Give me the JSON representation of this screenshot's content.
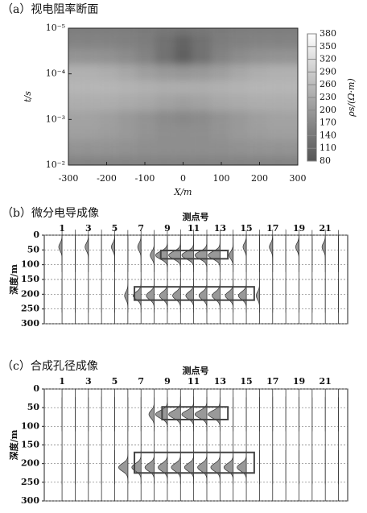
{
  "chart_data": [
    {
      "type": "heatmap",
      "title": "（a）视电阻率断面",
      "xlabel": "X/m",
      "ylabel": "t/s",
      "x": [
        -300,
        -250,
        -200,
        -150,
        -100,
        -50,
        0,
        50,
        100,
        150,
        200,
        250,
        300
      ],
      "y": [
        1e-05,
        2e-05,
        4e-05,
        0.0001,
        0.0002,
        0.0004,
        0.001,
        0.002,
        0.004,
        0.01
      ],
      "z": [
        [
          150,
          150,
          150,
          150,
          145,
          140,
          135,
          140,
          145,
          150,
          150,
          150,
          150
        ],
        [
          160,
          160,
          160,
          155,
          150,
          130,
          105,
          130,
          150,
          155,
          160,
          160,
          160
        ],
        [
          190,
          190,
          185,
          175,
          160,
          130,
          100,
          130,
          160,
          175,
          185,
          190,
          190
        ],
        [
          240,
          240,
          235,
          225,
          210,
          200,
          195,
          200,
          210,
          225,
          235,
          240,
          240
        ],
        [
          250,
          250,
          250,
          245,
          240,
          235,
          235,
          235,
          240,
          245,
          250,
          250,
          250
        ],
        [
          235,
          235,
          235,
          230,
          225,
          215,
          210,
          215,
          225,
          230,
          235,
          235,
          235
        ],
        [
          215,
          215,
          210,
          200,
          190,
          175,
          170,
          175,
          190,
          200,
          210,
          215,
          215
        ],
        [
          210,
          210,
          205,
          200,
          190,
          180,
          178,
          180,
          190,
          200,
          205,
          210,
          210
        ],
        [
          190,
          190,
          190,
          185,
          180,
          178,
          178,
          178,
          180,
          185,
          190,
          190,
          190
        ],
        [
          160,
          160,
          160,
          160,
          160,
          160,
          160,
          160,
          160,
          160,
          160,
          160,
          160
        ]
      ],
      "xlim": [
        -300,
        300
      ],
      "xticks": [
        -300,
        -200,
        -100,
        0,
        100,
        200,
        300
      ],
      "ylim": [
        1e-05,
        0.01
      ],
      "log_y": true,
      "y_reversed": true,
      "yticks": [
        {
          "value": 1e-05,
          "label": "10⁻⁵"
        },
        {
          "value": 0.0001,
          "label": "10⁻⁴"
        },
        {
          "value": 0.001,
          "label": "10⁻³"
        },
        {
          "value": 0.01,
          "label": "10⁻²"
        }
      ],
      "colormap": [
        "#555555",
        "#ffffff"
      ],
      "colorbar": {
        "label": "ρs/(Ω·m)",
        "lim": [
          80,
          380
        ],
        "ticks": [
          80,
          110,
          140,
          170,
          200,
          230,
          260,
          290,
          320,
          350,
          380
        ]
      }
    },
    {
      "type": "wiggle",
      "title": "（b）微分电导成像",
      "xlabel": "测点号",
      "ylabel": "深度/m",
      "stations": [
        1,
        2,
        3,
        4,
        5,
        6,
        7,
        8,
        9,
        10,
        11,
        12,
        13,
        14,
        15,
        16,
        17,
        18,
        19,
        20,
        21,
        22
      ],
      "xlim": [
        -0.35,
        22.7
      ],
      "xticks": [
        1,
        3,
        5,
        7,
        9,
        11,
        13,
        15,
        17,
        19,
        21
      ],
      "ylim": [
        0,
        300
      ],
      "y_reversed": true,
      "yticks": [
        0,
        50,
        100,
        150,
        200,
        250,
        300
      ],
      "grid": true,
      "peaks": [
        {
          "depth": 40,
          "values": [
            0.25,
            0,
            0.25,
            0,
            0.25,
            0,
            0.25,
            0,
            0,
            0,
            0,
            0,
            0,
            0,
            0.25,
            0,
            0.25,
            0,
            0.25,
            0,
            0.25,
            0
          ]
        },
        {
          "depth": 68,
          "values": [
            0,
            0,
            0,
            0,
            0,
            0,
            0,
            0.3,
            0.9,
            0.9,
            0.9,
            0.9,
            0.9,
            0.3,
            0,
            0,
            0,
            0,
            0,
            0,
            0,
            0
          ]
        },
        {
          "depth": 205,
          "values": [
            0,
            0,
            0,
            0,
            0,
            0.25,
            0.6,
            0.6,
            0.6,
            0.6,
            0.6,
            0.6,
            0.6,
            0.6,
            0.6,
            0.25,
            0,
            0,
            0,
            0,
            0,
            0
          ]
        }
      ],
      "boxes": [
        {
          "x": [
            8.5,
            13.6
          ],
          "y": [
            52,
            80
          ]
        },
        {
          "x": [
            6.5,
            15.6
          ],
          "y": [
            175,
            220
          ]
        }
      ]
    },
    {
      "type": "wiggle",
      "title": "（c）合成孔径成像",
      "xlabel": "测点号",
      "ylabel": "深度/m",
      "stations": [
        1,
        2,
        3,
        4,
        5,
        6,
        7,
        8,
        9,
        10,
        11,
        12,
        13,
        14,
        15,
        16,
        17,
        18,
        19,
        20,
        21,
        22
      ],
      "xlim": [
        -0.35,
        22.7
      ],
      "xticks": [
        1,
        3,
        5,
        7,
        9,
        11,
        13,
        15,
        17,
        19,
        21
      ],
      "ylim": [
        0,
        300
      ],
      "y_reversed": true,
      "yticks": [
        0,
        50,
        100,
        150,
        200,
        250,
        300
      ],
      "grid": true,
      "peaks": [
        {
          "depth": 68,
          "values": [
            0,
            0,
            0,
            0,
            0,
            0,
            0,
            0.4,
            0.9,
            0.9,
            0.9,
            0.9,
            0.9,
            0,
            0,
            0,
            0,
            0,
            0,
            0,
            0,
            0
          ]
        },
        {
          "depth": 210,
          "values": [
            0,
            0,
            0,
            0,
            0,
            0.7,
            0.7,
            0.7,
            0.7,
            0.7,
            0.7,
            0.7,
            0.7,
            0.7,
            0.7,
            0,
            0,
            0,
            0,
            0,
            0,
            0
          ]
        }
      ],
      "boxes": [
        {
          "x": [
            8.6,
            13.6
          ],
          "y": [
            48,
            82
          ]
        },
        {
          "x": [
            6.5,
            15.6
          ],
          "y": [
            170,
            225
          ]
        }
      ]
    }
  ]
}
